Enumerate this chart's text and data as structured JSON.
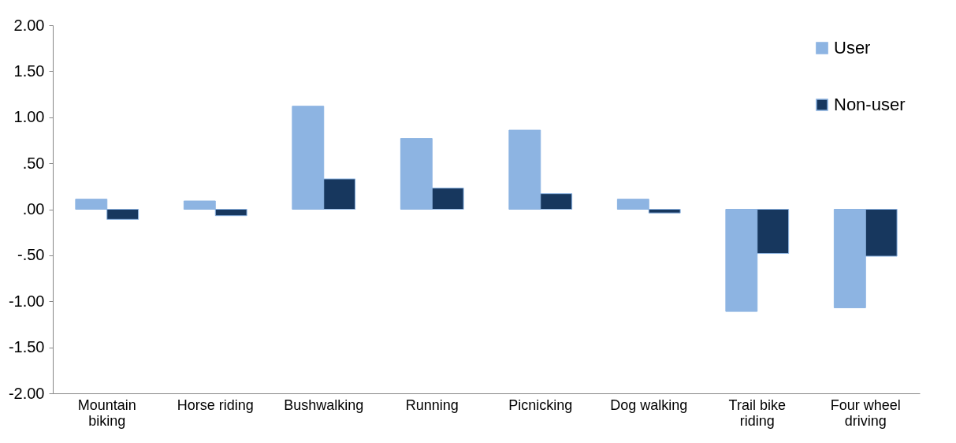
{
  "chart_data": {
    "type": "bar",
    "categories": [
      "Mountain biking",
      "Horse riding",
      "Bushwalking",
      "Running",
      "Picnicking",
      "Dog walking",
      "Trail bike riding",
      "Four wheel driving"
    ],
    "series": [
      {
        "name": "User",
        "color": "#8db4e2",
        "values": [
          0.11,
          0.09,
          1.12,
          0.77,
          0.86,
          0.11,
          -1.11,
          -1.07
        ]
      },
      {
        "name": "Non-user",
        "color": "#17375e",
        "values": [
          -0.11,
          -0.07,
          0.33,
          0.23,
          0.17,
          -0.04,
          -0.48,
          -0.51
        ]
      }
    ],
    "ylim": [
      -2,
      2
    ],
    "yticks": [
      {
        "value": 2,
        "label": "2.00"
      },
      {
        "value": 1.5,
        "label": "1.50"
      },
      {
        "value": 1,
        "label": "1.00"
      },
      {
        "value": 0.5,
        "label": ".50"
      },
      {
        "value": 0,
        "label": ".00"
      },
      {
        "value": -0.5,
        "label": "-.50"
      },
      {
        "value": -1,
        "label": "-1.00"
      },
      {
        "value": -1.5,
        "label": "-1.50"
      },
      {
        "value": -2,
        "label": "-2.00"
      }
    ],
    "grid": false,
    "legend": "top right"
  }
}
